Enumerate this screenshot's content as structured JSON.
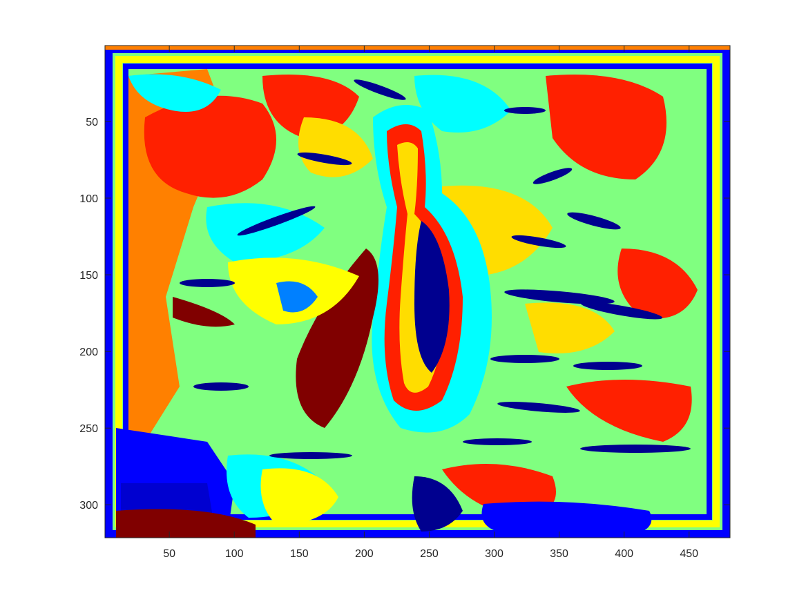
{
  "chart_data": {
    "type": "heatmap",
    "title": "",
    "xlabel": "",
    "ylabel": "",
    "xlim": [
      0.5,
      481.5
    ],
    "ylim": [
      0.5,
      321.5
    ],
    "y_reversed": true,
    "x_ticks": [
      50,
      100,
      150,
      200,
      250,
      300,
      350,
      400,
      450
    ],
    "y_ticks": [
      50,
      100,
      150,
      200,
      250,
      300
    ],
    "x_tick_labels": [
      "50",
      "100",
      "150",
      "200",
      "250",
      "300",
      "350",
      "400",
      "450"
    ],
    "y_tick_labels": [
      "50",
      "100",
      "150",
      "200",
      "250",
      "300"
    ],
    "colormap": "jet",
    "palette": [
      "#00008f",
      "#0000ff",
      "#0080ff",
      "#00ffff",
      "#80ff80",
      "#ffff00",
      "#ff8000",
      "#ff0000",
      "#800000"
    ],
    "grid": false,
    "legend": "none",
    "image_description_hidden": true
  }
}
